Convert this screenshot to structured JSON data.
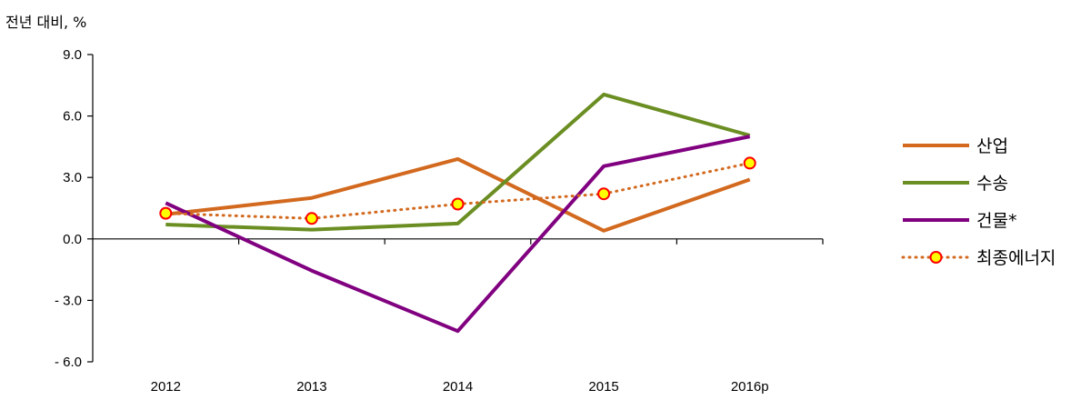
{
  "chart_data": {
    "type": "line",
    "ylabel": "전년 대비, %",
    "categories": [
      "2012",
      "2013",
      "2014",
      "2015",
      "2016p"
    ],
    "y_ticks": [
      "9.0",
      "6.0",
      "3.0",
      "0.0",
      "- 3.0",
      "- 6.0"
    ],
    "ylim": [
      -6,
      9
    ],
    "grid": false,
    "legend_position": "right",
    "series": [
      {
        "name": "산업",
        "color": "#D2691E",
        "style": "solid",
        "marker": "none",
        "values": [
          1.2,
          2.0,
          3.9,
          0.4,
          2.9
        ]
      },
      {
        "name": "수송",
        "color": "#6B8E23",
        "style": "solid",
        "marker": "none",
        "values": [
          0.7,
          0.45,
          0.75,
          7.05,
          5.05
        ]
      },
      {
        "name": "건물*",
        "color": "#800080",
        "style": "solid",
        "marker": "none",
        "values": [
          1.75,
          -1.55,
          -4.5,
          3.55,
          5.0
        ]
      },
      {
        "name": "최종에너지",
        "color": "#D2691E",
        "style": "dotted",
        "marker": "circle",
        "marker_fill": "#FFFF00",
        "marker_edge": "#FF0000",
        "values": [
          1.25,
          1.0,
          1.7,
          2.2,
          3.7
        ]
      }
    ]
  }
}
